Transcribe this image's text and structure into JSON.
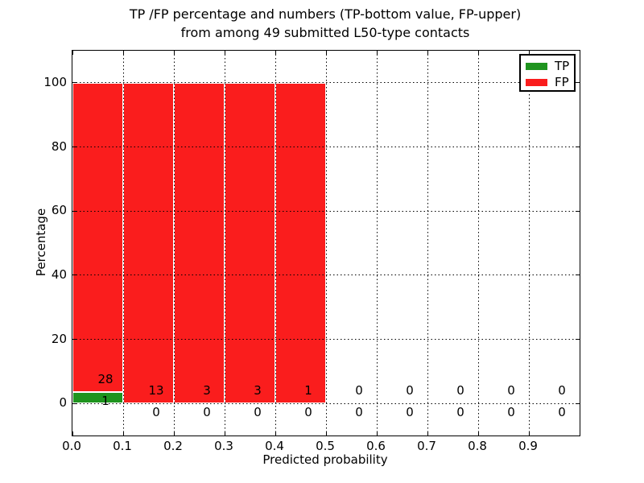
{
  "title": {
    "line1": "TP /FP percentage and numbers (TP-bottom value, FP-upper)",
    "line2": "from among 49 submitted L50-type contacts"
  },
  "chart_data": {
    "type": "bar",
    "stacked": true,
    "title": "TP /FP percentage and numbers (TP-bottom value, FP-upper)\nfrom among 49 submitted L50-type contacts",
    "xlabel": "Predicted probability",
    "ylabel": "Percentage",
    "xlim": [
      0.0,
      1.0
    ],
    "ylim": [
      -10,
      110
    ],
    "xticks": [
      0.0,
      0.1,
      0.2,
      0.3,
      0.4,
      0.5,
      0.6,
      0.7,
      0.8,
      0.9
    ],
    "xtick_labels": [
      "0.0",
      "0.1",
      "0.2",
      "0.3",
      "0.4",
      "0.5",
      "0.6",
      "0.7",
      "0.8",
      "0.9"
    ],
    "yticks": [
      0,
      20,
      40,
      60,
      80,
      100
    ],
    "ytick_labels": [
      "0",
      "20",
      "40",
      "60",
      "80",
      "100"
    ],
    "grid": "dotted",
    "legend_position": "upper right",
    "bin_width": 0.1,
    "bin_starts": [
      0.0,
      0.1,
      0.2,
      0.3,
      0.4,
      0.5,
      0.6,
      0.7,
      0.8,
      0.9
    ],
    "series": [
      {
        "name": "TP",
        "color": "#1f941f",
        "counts": [
          1,
          0,
          0,
          0,
          0,
          0,
          0,
          0,
          0,
          0
        ],
        "pct": [
          3.45,
          0,
          0,
          0,
          0,
          0,
          0,
          0,
          0,
          0
        ]
      },
      {
        "name": "FP",
        "color": "#fa1d1d",
        "counts": [
          28,
          13,
          3,
          3,
          1,
          0,
          0,
          0,
          0,
          0
        ],
        "pct": [
          96.55,
          100,
          100,
          100,
          100,
          0,
          0,
          0,
          0,
          0
        ]
      }
    ],
    "total_submitted": 49
  },
  "colors": {
    "background": "#ffffff",
    "frame": "#000000",
    "grid": "#000000",
    "text": "#000000",
    "tp_green": "#1f941f",
    "fp_red": "#fa1d1d"
  }
}
